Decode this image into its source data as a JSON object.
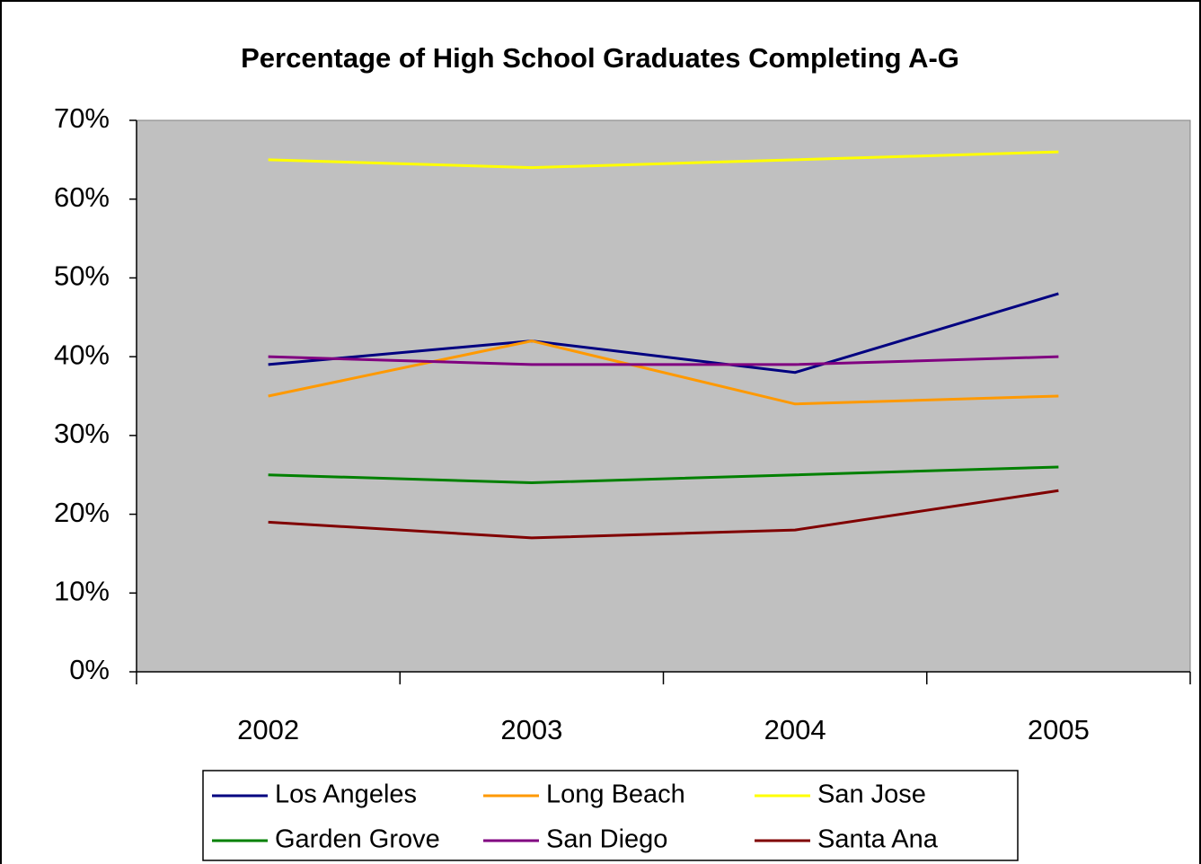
{
  "chart_data": {
    "type": "line",
    "title": "Percentage of High School Graduates Completing A-G",
    "categories": [
      "2002",
      "2003",
      "2004",
      "2005"
    ],
    "series": [
      {
        "name": "Los Angeles",
        "color": "#000080",
        "values": [
          39,
          42,
          38,
          48
        ]
      },
      {
        "name": "Long Beach",
        "color": "#ff9900",
        "values": [
          35,
          42,
          34,
          35
        ]
      },
      {
        "name": "San Jose",
        "color": "#ffff00",
        "values": [
          65,
          64,
          65,
          66
        ]
      },
      {
        "name": "Garden Grove",
        "color": "#008000",
        "values": [
          25,
          24,
          25,
          26
        ]
      },
      {
        "name": "San Diego",
        "color": "#800080",
        "values": [
          40,
          39,
          39,
          40
        ]
      },
      {
        "name": "Santa Ana",
        "color": "#800000",
        "values": [
          19,
          17,
          18,
          23
        ]
      }
    ],
    "ylim": [
      0,
      70
    ],
    "yticks": [
      {
        "value": 0,
        "label": "0%"
      },
      {
        "value": 10,
        "label": "10%"
      },
      {
        "value": 20,
        "label": "20%"
      },
      {
        "value": 30,
        "label": "30%"
      },
      {
        "value": 40,
        "label": "40%"
      },
      {
        "value": 50,
        "label": "50%"
      },
      {
        "value": 60,
        "label": "60%"
      },
      {
        "value": 70,
        "label": "70%"
      }
    ],
    "legend": "bottom"
  }
}
